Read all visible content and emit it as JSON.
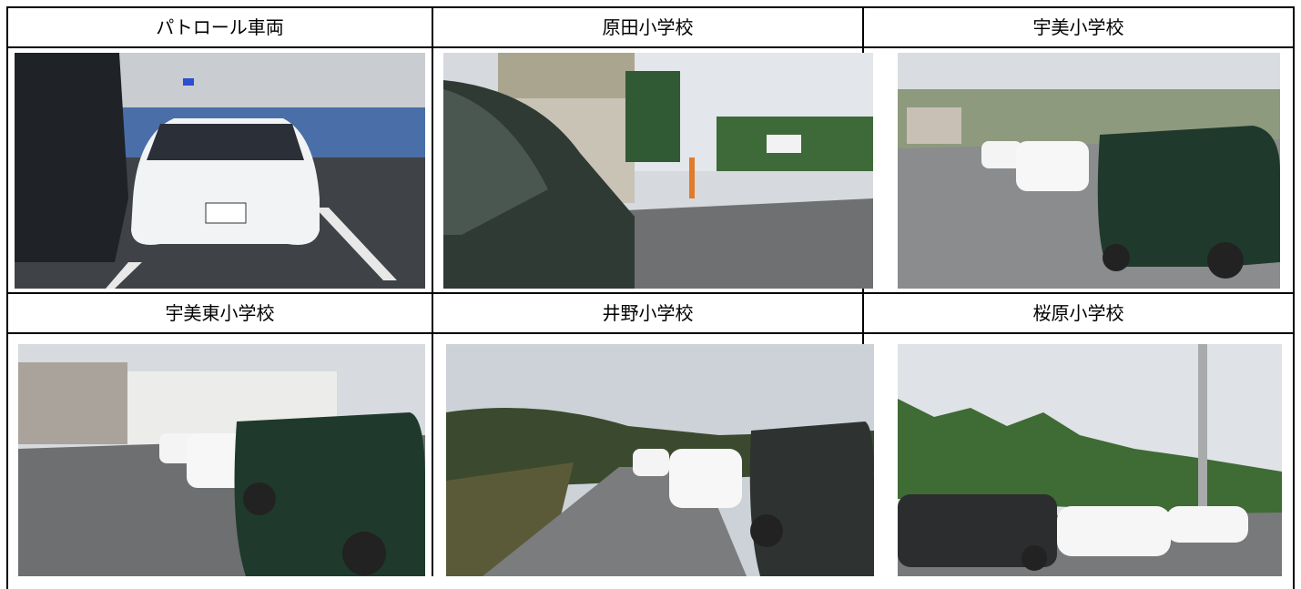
{
  "table": {
    "rows": [
      [
        "パトロール車両",
        "原田小学校",
        "宇美小学校"
      ],
      [
        "宇美東小学校",
        "井野小学校",
        "桜原小学校"
      ]
    ]
  }
}
